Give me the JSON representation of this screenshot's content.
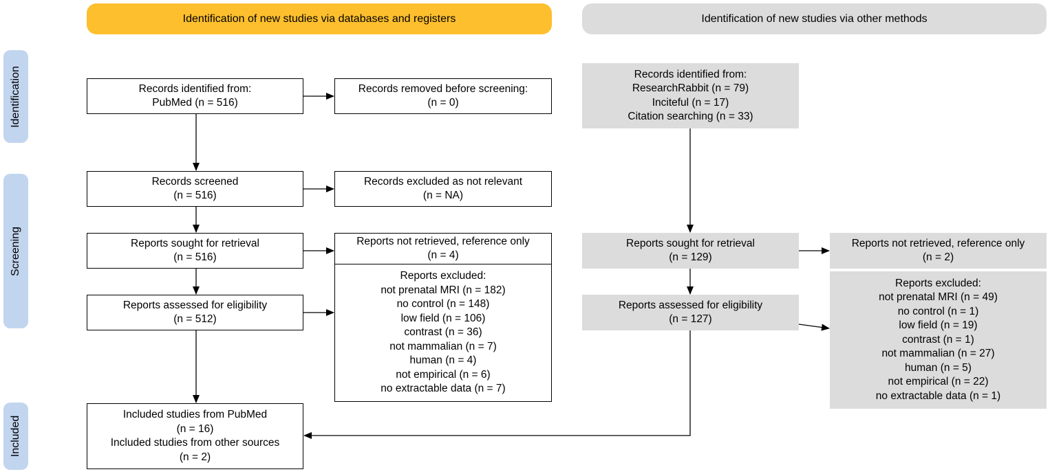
{
  "headers": {
    "databases": "Identification of new studies via databases and registers",
    "other": "Identification of new studies via other methods"
  },
  "stages": {
    "identification": "Identification",
    "screening": "Screening",
    "included": "Included"
  },
  "colors": {
    "databases_header": "#fdbf2d",
    "other_header": "#dcdcdc",
    "stage_label": "#c2d5ef",
    "grey_box": "#dcdcdc"
  },
  "databases": {
    "records_identified": {
      "lines": [
        "Records identified from:",
        "PubMed (n = 516)"
      ]
    },
    "records_removed": {
      "lines": [
        "Records removed before screening:",
        "(n = 0)"
      ]
    },
    "records_screened": {
      "lines": [
        "Records screened",
        "(n = 516)"
      ]
    },
    "records_excluded": {
      "lines": [
        "Records excluded as not relevant",
        "(n = NA)"
      ]
    },
    "reports_sought": {
      "lines": [
        "Reports sought for retrieval",
        "(n = 516)"
      ]
    },
    "reports_not_retrieved": {
      "lines": [
        "Reports not retrieved, reference only",
        "(n = 4)"
      ]
    },
    "reports_assessed": {
      "lines": [
        "Reports assessed for eligibility",
        "(n = 512)"
      ]
    },
    "reports_excluded": {
      "lines": [
        "Reports excluded:",
        "not prenatal MRI (n =  182)",
        "no control (n =  148)",
        "low field (n =  106)",
        "contrast (n =  36)",
        "not mammalian (n =  7)",
        "human (n =  4)",
        "not empirical (n =  6)",
        "no extractable data (n =  7)"
      ]
    },
    "included": {
      "lines": [
        "Included studies from PubMed",
        "(n = 16)",
        "Included studies from other sources",
        "(n = 2)"
      ]
    }
  },
  "other": {
    "records_identified": {
      "lines": [
        "Records identified from:",
        "ResearchRabbit (n = 79)",
        "Inciteful (n = 17)",
        "Citation searching (n = 33)"
      ]
    },
    "reports_sought": {
      "lines": [
        "Reports sought for retrieval",
        "(n = 129)"
      ]
    },
    "reports_not_retrieved": {
      "lines": [
        "Reports not retrieved, reference only",
        "(n = 2)"
      ]
    },
    "reports_assessed": {
      "lines": [
        "Reports assessed for eligibility",
        "(n = 127)"
      ]
    },
    "reports_excluded": {
      "lines": [
        "Reports excluded:",
        "not prenatal MRI (n =  49)",
        "no control (n =  1)",
        "low field (n =  19)",
        "contrast (n =  1)",
        "not mammalian (n =  27)",
        "human (n =  5)",
        "not empirical (n =  22)",
        "no extractable data (n =  1)"
      ]
    }
  }
}
